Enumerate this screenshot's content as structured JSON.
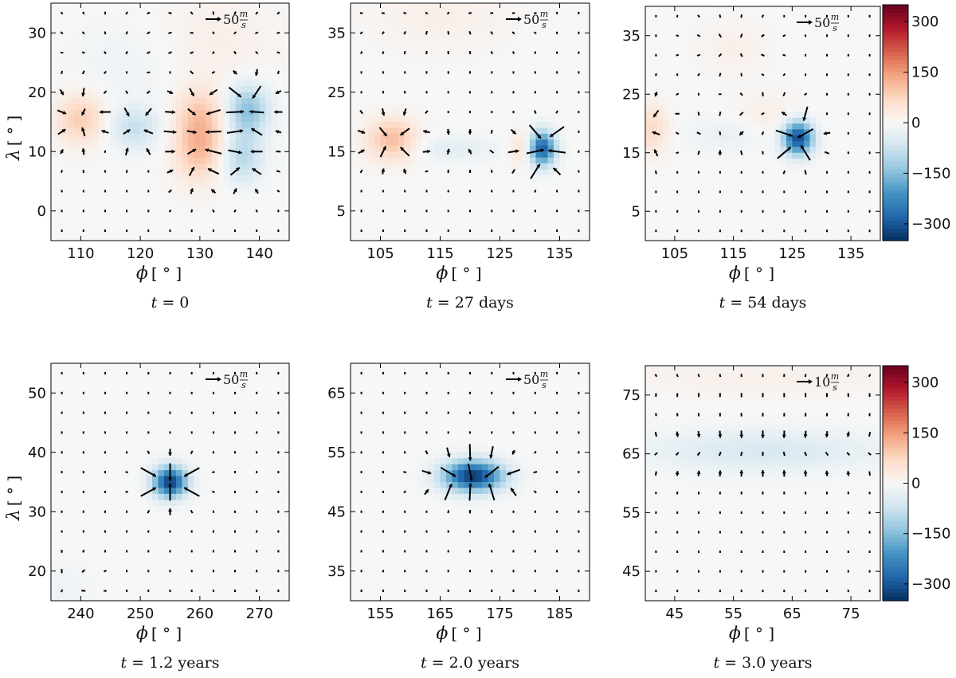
{
  "chart_data": [
    {
      "type": "heatmap",
      "panel": "top-left",
      "caption": {
        "var": "t",
        "value": "= 0"
      },
      "xlabel": "ϕ",
      "ylabel": "λ",
      "unit": "[ ° ]",
      "xlim": [
        105,
        145
      ],
      "ylim": [
        -5,
        35
      ],
      "xticks": [
        "110",
        "120",
        "130",
        "140"
      ],
      "yticks": [
        "0",
        "10",
        "20",
        "30"
      ],
      "quiver_key": {
        "value": "50",
        "unit_num": "m",
        "unit_den": "s"
      },
      "blobs": [
        {
          "x": 110,
          "y": 15.5,
          "value": 90,
          "sx": 3,
          "sy": 3
        },
        {
          "x": 119,
          "y": 14,
          "value": -80,
          "sx": 3,
          "sy": 2.5
        },
        {
          "x": 130,
          "y": 11,
          "value": 120,
          "sx": 3,
          "sy": 4
        },
        {
          "x": 130,
          "y": 17,
          "value": 60,
          "sx": 3,
          "sy": 3
        },
        {
          "x": 138,
          "y": 17,
          "value": -150,
          "sx": 2.5,
          "sy": 3
        },
        {
          "x": 137,
          "y": 9,
          "value": -100,
          "sx": 2.5,
          "sy": 3
        },
        {
          "x": 131,
          "y": 28,
          "value": 25,
          "sx": 8,
          "sy": 6
        },
        {
          "x": 120,
          "y": 25,
          "value": -20,
          "sx": 8,
          "sy": 6
        }
      ]
    },
    {
      "type": "heatmap",
      "panel": "top-middle",
      "caption": {
        "var": "t",
        "value": "= 27 days"
      },
      "xlabel": "ϕ",
      "ylabel": "",
      "unit": "[ ° ]",
      "xlim": [
        100,
        140
      ],
      "ylim": [
        0,
        40
      ],
      "xticks": [
        "105",
        "115",
        "125",
        "135"
      ],
      "yticks": [
        "5",
        "15",
        "25",
        "35"
      ],
      "quiver_key": {
        "value": "50",
        "unit_num": "m",
        "unit_den": "s"
      },
      "blobs": [
        {
          "x": 107,
          "y": 17,
          "value": 110,
          "sx": 3,
          "sy": 2.5
        },
        {
          "x": 117,
          "y": 15.5,
          "value": -40,
          "sx": 5,
          "sy": 1.5
        },
        {
          "x": 129,
          "y": 15.5,
          "value": 70,
          "sx": 1.5,
          "sy": 2
        },
        {
          "x": 132,
          "y": 15.5,
          "value": -300,
          "sx": 1.6,
          "sy": 2
        },
        {
          "x": 115,
          "y": 38,
          "value": 20,
          "sx": 8,
          "sy": 4
        }
      ]
    },
    {
      "type": "heatmap",
      "panel": "top-right",
      "caption": {
        "var": "t",
        "value": "= 54 days"
      },
      "xlabel": "ϕ",
      "ylabel": "",
      "unit": "[ ° ]",
      "xlim": [
        100,
        140
      ],
      "ylim": [
        0,
        40
      ],
      "xticks": [
        "105",
        "115",
        "125",
        "135"
      ],
      "yticks": [
        "5",
        "15",
        "25",
        "35"
      ],
      "quiver_key": {
        "value": "50",
        "unit_num": "m",
        "unit_den": "s"
      },
      "colorbar": {
        "ticks": [
          "300",
          "150",
          "0",
          "−150",
          "−300"
        ],
        "vmin": -350,
        "vmax": 350
      },
      "blobs": [
        {
          "x": 101,
          "y": 19,
          "value": 70,
          "sx": 2,
          "sy": 3
        },
        {
          "x": 114,
          "y": 18,
          "value": -30,
          "sx": 5,
          "sy": 2
        },
        {
          "x": 126,
          "y": 17.5,
          "value": -320,
          "sx": 1.8,
          "sy": 2
        },
        {
          "x": 121,
          "y": 21,
          "value": 25,
          "sx": 4,
          "sy": 3
        },
        {
          "x": 115,
          "y": 33,
          "value": 20,
          "sx": 4,
          "sy": 3
        }
      ]
    },
    {
      "type": "heatmap",
      "panel": "bottom-left",
      "caption": {
        "var": "t",
        "value": "= 1.2 years"
      },
      "xlabel": "ϕ",
      "ylabel": "λ",
      "unit": "[ ° ]",
      "xlim": [
        235,
        275
      ],
      "ylim": [
        15,
        55
      ],
      "xticks": [
        "240",
        "250",
        "260",
        "270"
      ],
      "yticks": [
        "20",
        "30",
        "40",
        "50"
      ],
      "quiver_key": {
        "value": "50",
        "unit_num": "m",
        "unit_den": "s"
      },
      "blobs": [
        {
          "x": 255,
          "y": 35,
          "value": -330,
          "sx": 2,
          "sy": 1.8
        },
        {
          "x": 237,
          "y": 17,
          "value": -20,
          "sx": 3,
          "sy": 3
        }
      ]
    },
    {
      "type": "heatmap",
      "panel": "bottom-middle",
      "caption": {
        "var": "t",
        "value": "= 2.0 years"
      },
      "xlabel": "ϕ",
      "ylabel": "",
      "unit": "[ ° ]",
      "xlim": [
        150,
        190
      ],
      "ylim": [
        30,
        70
      ],
      "xticks": [
        "155",
        "165",
        "175",
        "185"
      ],
      "yticks": [
        "35",
        "45",
        "55",
        "65"
      ],
      "quiver_key": {
        "value": "50",
        "unit_num": "m",
        "unit_den": "s"
      },
      "blobs": [
        {
          "x": 170.5,
          "y": 51,
          "value": -340,
          "sx": 3.5,
          "sy": 1.8
        }
      ]
    },
    {
      "type": "heatmap",
      "panel": "bottom-right",
      "caption": {
        "var": "t",
        "value": "= 3.0 years"
      },
      "xlabel": "ϕ",
      "ylabel": "",
      "unit": "[ ° ]",
      "xlim": [
        40,
        80
      ],
      "ylim": [
        40,
        80
      ],
      "xticks": [
        "45",
        "55",
        "65",
        "75"
      ],
      "yticks": [
        "45",
        "55",
        "65",
        "75"
      ],
      "quiver_key": {
        "value": "10",
        "unit_num": "m",
        "unit_den": "s"
      },
      "colorbar": {
        "ticks": [
          "300",
          "150",
          "0",
          "−150",
          "−300"
        ],
        "vmin": -350,
        "vmax": 350
      },
      "blobs": [
        {
          "x": 60,
          "y": 65.5,
          "value": -55,
          "sx": 14,
          "sy": 2.5
        },
        {
          "x": 60,
          "y": 78,
          "value": 18,
          "sx": 20,
          "sy": 2
        }
      ]
    }
  ]
}
